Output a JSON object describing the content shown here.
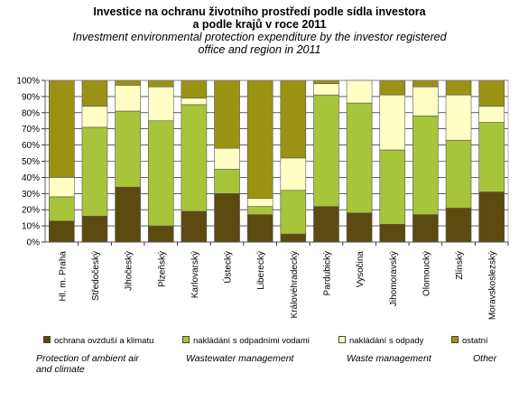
{
  "title": {
    "cz_line1": "Investice na ochranu životního prostředí podle sídla investora",
    "cz_line2": "a podle krajů v roce 2011",
    "en_line1": "Investment environmental protection expenditure by the investor registered",
    "en_line2": "office and region in 2011"
  },
  "chart_data": {
    "type": "bar",
    "stacked": "percent",
    "categories": [
      "Hl. m. Praha",
      "Středočeský",
      "Jihočeský",
      "Plzeňský",
      "Karlovarský",
      "Ústecký",
      "Liberecký",
      "Královéhradecký",
      "Pardubický",
      "Vysočina",
      "Jihomoravský",
      "Olomoucký",
      "Zlínský",
      "Moravskoslezský"
    ],
    "yticks": [
      "0%",
      "10%",
      "20%",
      "30%",
      "40%",
      "50%",
      "60%",
      "70%",
      "80%",
      "90%",
      "100%"
    ],
    "ylim": [
      0,
      100
    ],
    "grid": true,
    "series": [
      {
        "name": "ochrana ovzduší a klimatu",
        "name_en": "Protection of ambient air\nand  climate",
        "color": "#5c4a11",
        "values": [
          13,
          16,
          34,
          10,
          19,
          30,
          17,
          5,
          22,
          18,
          11,
          17,
          21,
          31
        ]
      },
      {
        "name": "nakládání s odpadními vodami",
        "name_en": "Wastewater management",
        "color": "#a8c43a",
        "values": [
          15,
          55,
          47,
          65,
          66,
          15,
          5,
          27,
          69,
          68,
          46,
          61,
          42,
          43
        ]
      },
      {
        "name": "nakládání s odpady",
        "name_en": "Waste management",
        "color": "#ffffc5",
        "values": [
          12,
          13,
          16,
          21,
          4,
          13,
          5,
          20,
          7,
          14,
          34,
          18,
          28,
          10
        ]
      },
      {
        "name": "ostatní",
        "name_en": "Other",
        "color": "#9b9214",
        "values": [
          60,
          16,
          3,
          4,
          11,
          42,
          73,
          48,
          2,
          0,
          9,
          4,
          9,
          16
        ]
      }
    ]
  }
}
